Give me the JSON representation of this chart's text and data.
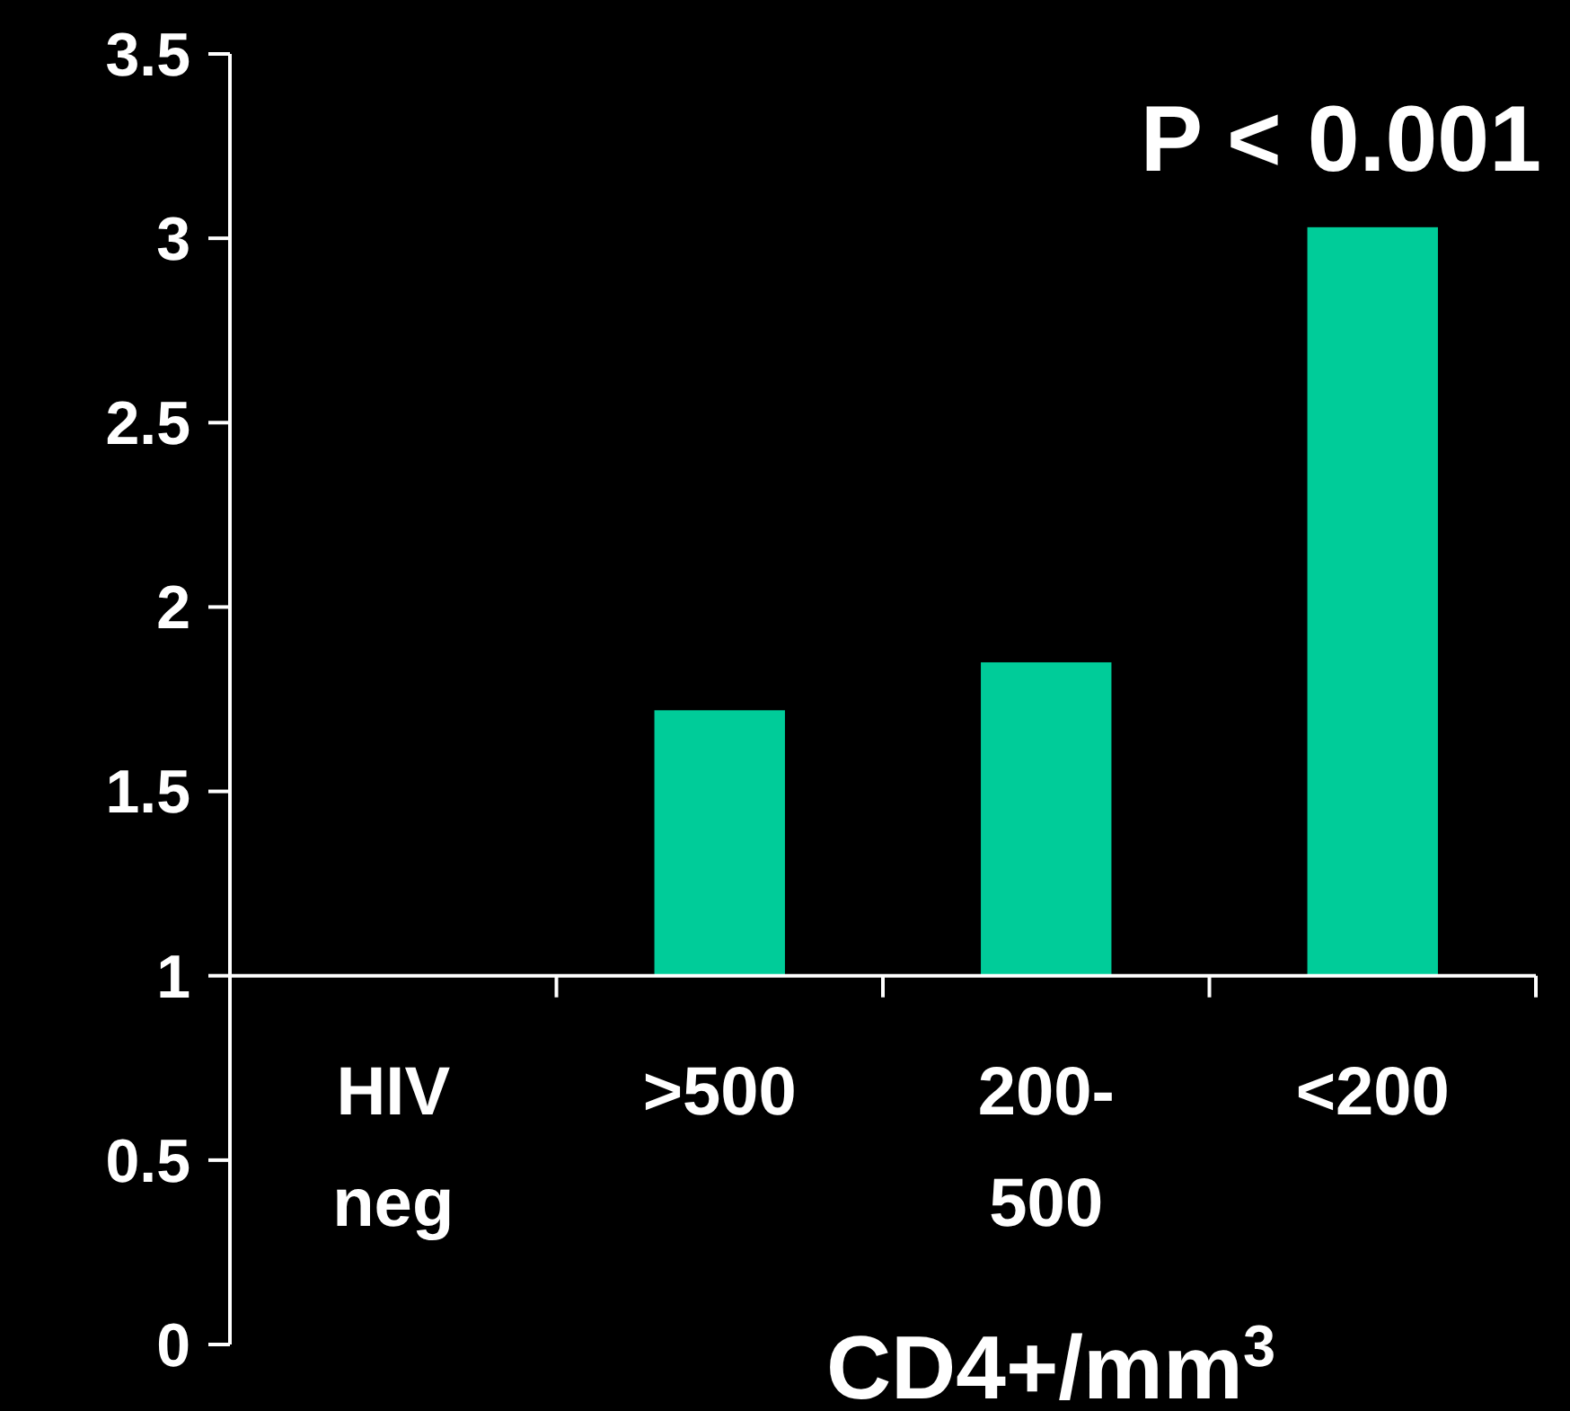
{
  "chart_data": {
    "type": "bar",
    "xlabel": "CD4+/mm$^{3}$",
    "annotations": [
      "P < 0.001"
    ],
    "categories": [
      "HIV neg",
      ">500",
      "200-500",
      "<200"
    ],
    "values": [
      null,
      0.72,
      0.85,
      2.03
    ],
    "base": [
      null,
      1,
      1,
      1
    ],
    "color": "#00cc99",
    "ylim": [
      0,
      3.5
    ],
    "yticks": [
      0,
      0.5,
      1,
      1.5,
      2,
      2.5,
      3,
      3.5
    ],
    "grid": false
  }
}
